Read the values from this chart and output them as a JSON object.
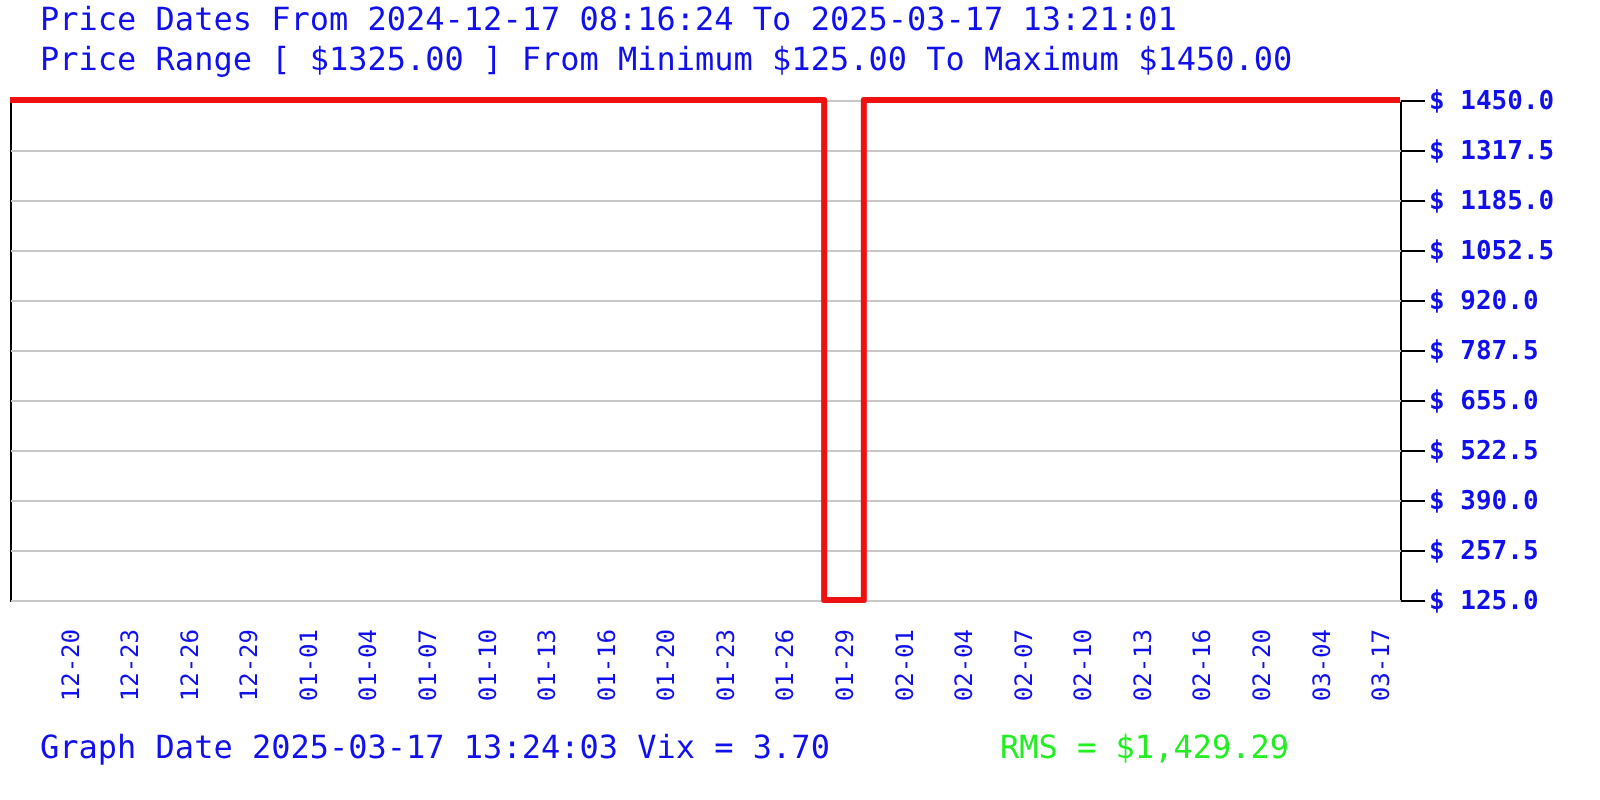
{
  "chart_data": {
    "type": "step",
    "title": "Price Dates From 2024-12-17 08:16:24 To 2025-03-17 13:21:01",
    "subtitle": "Price Range [ $1325.00 ] From Minimum $125.00 To Maximum $1450.00",
    "annotations": [
      "Graph Date 2025-03-17 13:24:03 Vix = 3.70",
      "RMS = $1,429.29"
    ],
    "categories": [
      null,
      null,
      null,
      "12-20",
      null,
      null,
      "12-23",
      null,
      null,
      "12-26",
      null,
      null,
      "12-29",
      null,
      null,
      "01-01",
      null,
      null,
      "01-04",
      null,
      null,
      "01-07",
      null,
      null,
      "01-10",
      null,
      null,
      "01-13",
      null,
      null,
      "01-16",
      null,
      null,
      "01-20",
      null,
      null,
      "01-23",
      null,
      null,
      "01-26",
      null,
      null,
      "01-29",
      null,
      null,
      "02-01",
      null,
      null,
      "02-04",
      null,
      null,
      "02-07",
      null,
      null,
      "02-10",
      null,
      null,
      "02-13",
      null,
      null,
      "02-16",
      null,
      null,
      "02-20",
      null,
      null,
      "03-04",
      null,
      null,
      "03-17",
      null
    ],
    "series": [
      {
        "color": "#ee1111",
        "values": [
          1450,
          1450,
          1450,
          1450,
          1450,
          1450,
          1450,
          1450,
          1450,
          1450,
          1450,
          1450,
          1450,
          1450,
          1450,
          1450,
          1450,
          1450,
          1450,
          1450,
          1450,
          1450,
          1450,
          1450,
          1450,
          1450,
          1450,
          1450,
          1450,
          1450,
          1450,
          1450,
          1450,
          1450,
          1450,
          1450,
          1450,
          1450,
          1450,
          1450,
          1450,
          125,
          125,
          1450,
          1450,
          1450,
          1450,
          1450,
          1450,
          1450,
          1450,
          1450,
          1450,
          1450,
          1450,
          1450,
          1450,
          1450,
          1450,
          1450,
          1450,
          1450,
          1450,
          1450,
          1450,
          1450,
          1450,
          1450,
          1450,
          1450,
          1450
        ]
      }
    ],
    "ylim": [
      125,
      1450
    ],
    "yticks": [
      {
        "value": 125,
        "label": "$ 125.0"
      },
      {
        "value": 257.5,
        "label": "$ 257.5"
      },
      {
        "value": 390,
        "label": "$ 390.0"
      },
      {
        "value": 522.5,
        "label": "$ 522.5"
      },
      {
        "value": 655,
        "label": "$ 655.0"
      },
      {
        "value": 787.5,
        "label": "$ 787.5"
      },
      {
        "value": 920,
        "label": "$ 920.0"
      },
      {
        "value": 1052.5,
        "label": "$ 1052.5"
      },
      {
        "value": 1185,
        "label": "$ 1185.0"
      },
      {
        "value": 1317.5,
        "label": "$ 1317.5"
      },
      {
        "value": 1450,
        "label": "$ 1450.0"
      }
    ],
    "grid": "y"
  }
}
